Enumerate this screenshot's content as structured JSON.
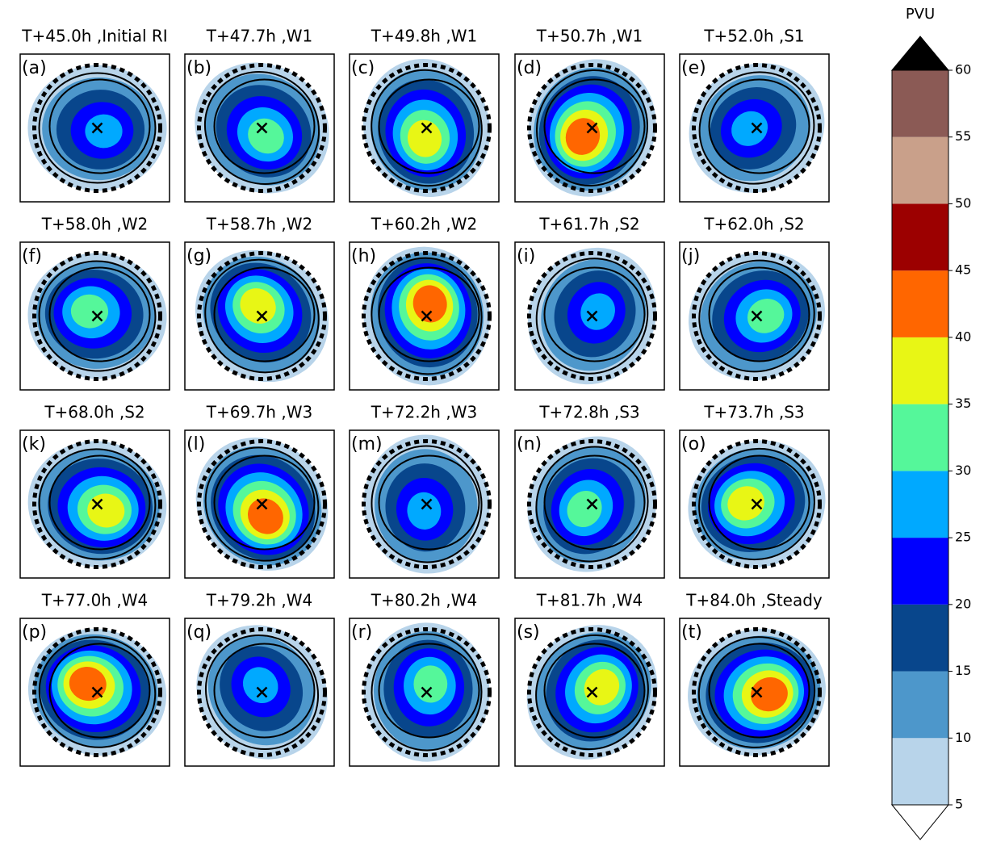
{
  "panels": [
    {
      "title": "T+45.0h ,Initial RI",
      "label": "(a)"
    },
    {
      "title": "T+47.7h ,W1",
      "label": "(b)"
    },
    {
      "title": "T+49.8h ,W1",
      "label": "(c)"
    },
    {
      "title": "T+50.7h ,W1",
      "label": "(d)"
    },
    {
      "title": "T+52.0h ,S1",
      "label": "(e)"
    },
    {
      "title": "T+58.0h ,W2",
      "label": "(f)"
    },
    {
      "title": "T+58.7h ,W2",
      "label": "(g)"
    },
    {
      "title": "T+60.2h ,W2",
      "label": "(h)"
    },
    {
      "title": "T+61.7h ,S2",
      "label": "(i)"
    },
    {
      "title": "T+62.0h ,S2",
      "label": "(j)"
    },
    {
      "title": "T+68.0h ,S2",
      "label": "(k)"
    },
    {
      "title": "T+69.7h ,W3",
      "label": "(l)"
    },
    {
      "title": "T+72.2h ,W3",
      "label": "(m)"
    },
    {
      "title": "T+72.8h ,S3",
      "label": "(n)"
    },
    {
      "title": "T+73.7h ,S3",
      "label": "(o)"
    },
    {
      "title": "T+77.0h ,W4",
      "label": "(p)"
    },
    {
      "title": "T+79.2h ,W4",
      "label": "(q)"
    },
    {
      "title": "T+80.2h ,W4",
      "label": "(r)"
    },
    {
      "title": "T+81.7h ,W4",
      "label": "(s)"
    },
    {
      "title": "T+84.0h ,Steady",
      "label": "(t)"
    }
  ],
  "colorbar": {
    "label": "PVU",
    "ticks": [
      5,
      10,
      15,
      20,
      25,
      30,
      35,
      40,
      45,
      50,
      55,
      60
    ],
    "colors": [
      "#b8d4ea",
      "#4d97cb",
      "#08468c",
      "#0000ff",
      "#00a9ff",
      "#55f79a",
      "#e8f615",
      "#ff6600",
      "#9c0000",
      "#c9a08a",
      "#8b5a55"
    ],
    "extend_max_color": "#000000",
    "extend_min_color": "#ffffff"
  }
}
